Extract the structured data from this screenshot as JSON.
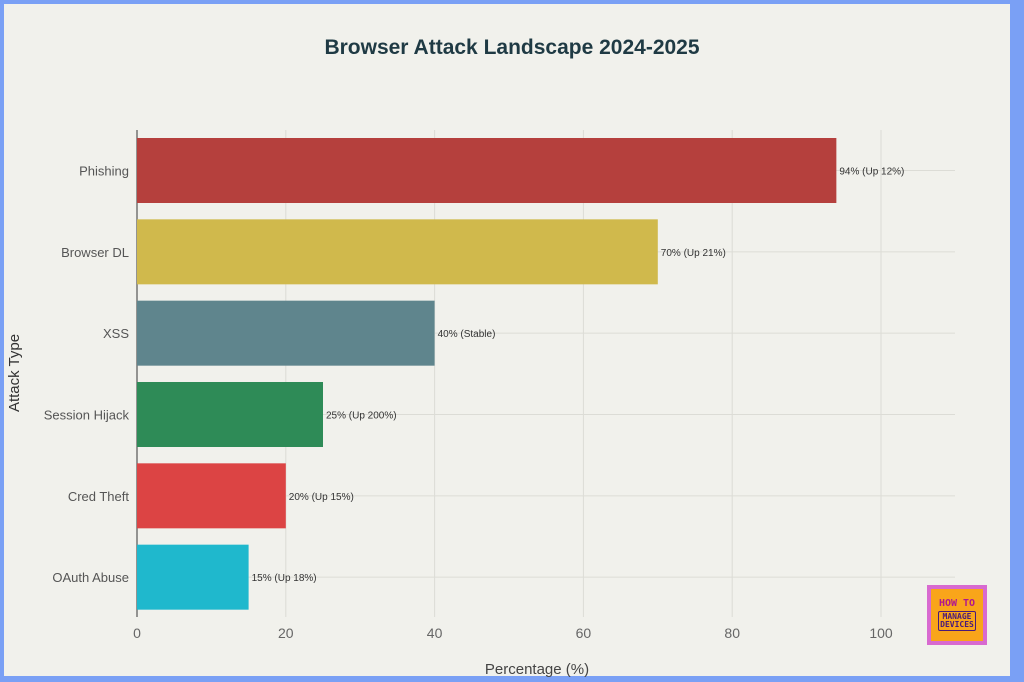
{
  "chart_data": {
    "type": "bar",
    "orientation": "horizontal",
    "title": "Browser Attack Landscape 2024-2025",
    "xlabel": "Percentage (%)",
    "ylabel": "Attack Type",
    "xlim": [
      0,
      110
    ],
    "xticks": [
      0,
      20,
      40,
      60,
      80,
      100
    ],
    "grid": true,
    "categories": [
      "Phishing",
      "Browser DL",
      "XSS",
      "Session Hijack",
      "Cred Theft",
      "OAuth Abuse"
    ],
    "values": [
      94,
      70,
      40,
      25,
      20,
      15
    ],
    "data_labels": [
      "94% (Up 12%)",
      "70% (Up 21%)",
      "40% (Stable)",
      "25% (Up 200%)",
      "20% (Up 15%)",
      "15% (Up 18%)"
    ],
    "colors": [
      "#b5403d",
      "#d0b94c",
      "#5f858d",
      "#2e8b57",
      "#dc4444",
      "#1fb8cd"
    ]
  },
  "logo": {
    "line1": "HOW TO",
    "line2": "MANAGE",
    "line3": "DEVICES"
  }
}
